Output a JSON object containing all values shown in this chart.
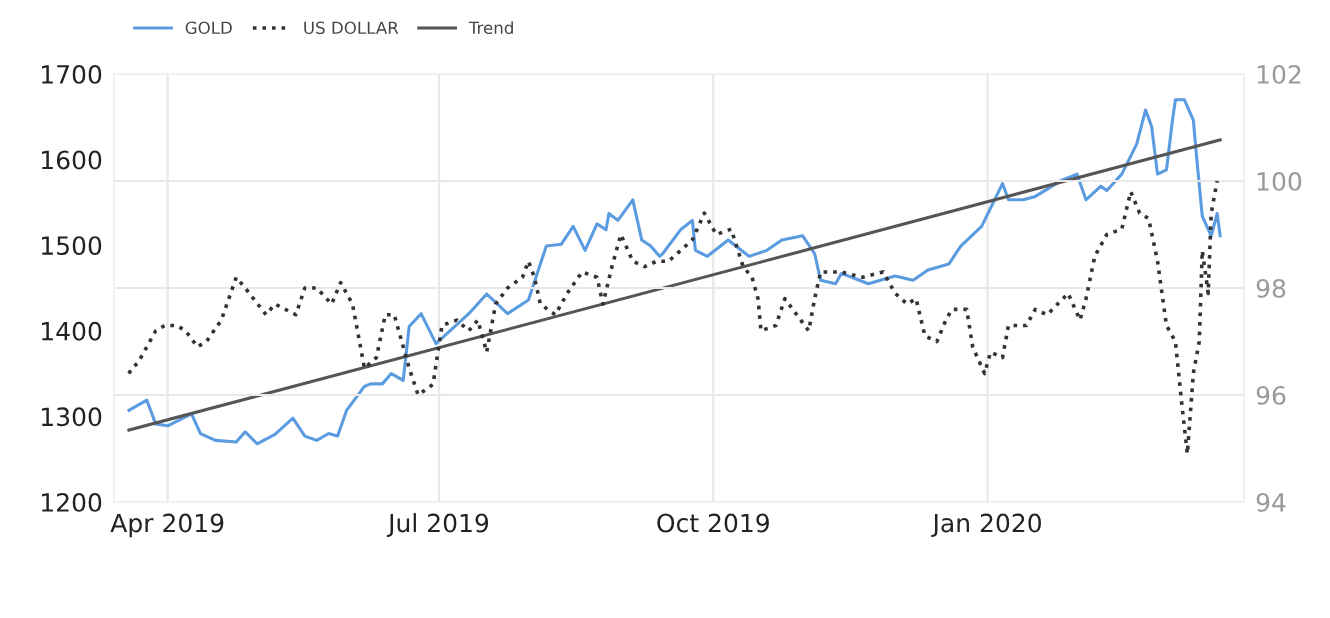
{
  "chart_data": {
    "type": "line",
    "xlim": [
      "2019-03-14",
      "2020-03-27"
    ],
    "xticks": [
      {
        "value": "2019-04-01",
        "label": "Apr 2019"
      },
      {
        "value": "2019-07-01",
        "label": "Jul 2019"
      },
      {
        "value": "2019-10-01",
        "label": "Oct 2019"
      },
      {
        "value": "2020-01-01",
        "label": "Jan 2020"
      }
    ],
    "ylim": [
      1200,
      1700
    ],
    "yticks": [
      1200,
      1300,
      1400,
      1500,
      1600,
      1700
    ],
    "y2lim": [
      94,
      102
    ],
    "y2ticks": [
      94,
      96,
      98,
      100,
      102
    ],
    "grid": true,
    "legend": "top left",
    "series": [
      {
        "name": "GOLD",
        "color": "#5b9be0",
        "line_style": "solid",
        "axis": "y",
        "x": [
          "2019-03-19",
          "2019-03-25",
          "2019-03-28",
          "2019-04-01",
          "2019-04-09",
          "2019-04-12",
          "2019-04-17",
          "2019-04-24",
          "2019-04-27",
          "2019-05-01",
          "2019-05-07",
          "2019-05-13",
          "2019-05-17",
          "2019-05-21",
          "2019-05-25",
          "2019-05-28",
          "2019-05-31",
          "2019-06-06",
          "2019-06-08",
          "2019-06-12",
          "2019-06-15",
          "2019-06-19",
          "2019-06-21",
          "2019-06-25",
          "2019-06-30",
          "2019-07-11",
          "2019-07-17",
          "2019-07-24",
          "2019-07-31",
          "2019-08-06",
          "2019-08-11",
          "2019-08-15",
          "2019-08-19",
          "2019-08-23",
          "2019-08-26",
          "2019-08-27",
          "2019-08-30",
          "2019-09-04",
          "2019-09-07",
          "2019-09-10",
          "2019-09-13",
          "2019-09-14",
          "2019-09-20",
          "2019-09-24",
          "2019-09-25",
          "2019-09-29",
          "2019-10-06",
          "2019-10-13",
          "2019-10-19",
          "2019-10-24",
          "2019-10-31",
          "2019-11-04",
          "2019-11-06",
          "2019-11-11",
          "2019-11-13",
          "2019-11-22",
          "2019-12-01",
          "2019-12-07",
          "2019-12-12",
          "2019-12-19",
          "2019-12-23",
          "2019-12-30",
          "2020-01-06",
          "2020-01-08",
          "2020-01-13",
          "2020-01-17",
          "2020-01-26",
          "2020-01-31",
          "2020-02-03",
          "2020-02-08",
          "2020-02-10",
          "2020-02-15",
          "2020-02-20",
          "2020-02-23",
          "2020-02-25",
          "2020-02-27",
          "2020-03-01",
          "2020-03-03",
          "2020-03-04",
          "2020-03-07",
          "2020-03-10",
          "2020-03-11",
          "2020-03-13",
          "2020-03-16",
          "2020-03-18",
          "2020-03-19"
        ],
        "values": [
          1307,
          1319,
          1291,
          1289,
          1303,
          1280,
          1272,
          1270,
          1282,
          1268,
          1279,
          1298,
          1277,
          1272,
          1280,
          1277,
          1307,
          1335,
          1338,
          1338,
          1350,
          1342,
          1405,
          1420,
          1385,
          1420,
          1443,
          1420,
          1436,
          1499,
          1501,
          1522,
          1494,
          1525,
          1518,
          1537,
          1529,
          1553,
          1506,
          1499,
          1487,
          1490,
          1518,
          1529,
          1494,
          1487,
          1506,
          1487,
          1494,
          1506,
          1511,
          1490,
          1459,
          1455,
          1467,
          1455,
          1464,
          1459,
          1471,
          1478,
          1499,
          1522,
          1572,
          1553,
          1553,
          1557,
          1576,
          1583,
          1553,
          1569,
          1564,
          1583,
          1618,
          1658,
          1639,
          1583,
          1588,
          1646,
          1670,
          1670,
          1646,
          1607,
          1534,
          1511,
          1537,
          1511
        ]
      },
      {
        "name": "US DOLLAR",
        "color": "#333333",
        "line_style": "dotted",
        "axis": "y2",
        "x": [
          "2019-03-19",
          "2019-03-20",
          "2019-03-22",
          "2019-03-28",
          "2019-03-31",
          "2019-04-04",
          "2019-04-07",
          "2019-04-11",
          "2019-04-14",
          "2019-04-19",
          "2019-04-24",
          "2019-04-27",
          "2019-05-04",
          "2019-05-07",
          "2019-05-14",
          "2019-05-17",
          "2019-05-21",
          "2019-05-26",
          "2019-05-29",
          "2019-06-02",
          "2019-06-04",
          "2019-06-06",
          "2019-06-10",
          "2019-06-13",
          "2019-06-16",
          "2019-06-19",
          "2019-06-21",
          "2019-06-24",
          "2019-06-29",
          "2019-07-02",
          "2019-07-07",
          "2019-07-11",
          "2019-07-14",
          "2019-07-17",
          "2019-07-20",
          "2019-07-24",
          "2019-07-29",
          "2019-07-31",
          "2019-08-02",
          "2019-08-04",
          "2019-08-09",
          "2019-08-13",
          "2019-08-18",
          "2019-08-23",
          "2019-08-25",
          "2019-08-28",
          "2019-08-31",
          "2019-09-04",
          "2019-09-08",
          "2019-09-12",
          "2019-09-16",
          "2019-09-18",
          "2019-09-24",
          "2019-09-28",
          "2019-10-02",
          "2019-10-07",
          "2019-10-11",
          "2019-10-14",
          "2019-10-16",
          "2019-10-17",
          "2019-10-22",
          "2019-10-25",
          "2019-10-29",
          "2019-11-02",
          "2019-11-04",
          "2019-11-06",
          "2019-11-13",
          "2019-11-20",
          "2019-11-27",
          "2019-12-01",
          "2019-12-05",
          "2019-12-08",
          "2019-12-11",
          "2019-12-15",
          "2019-12-18",
          "2019-12-20",
          "2019-12-25",
          "2019-12-27",
          "2019-12-31",
          "2020-01-02",
          "2020-01-06",
          "2020-01-08",
          "2020-01-14",
          "2020-01-17",
          "2020-01-21",
          "2020-01-28",
          "2020-02-01",
          "2020-02-03",
          "2020-02-06",
          "2020-02-10",
          "2020-02-15",
          "2020-02-18",
          "2020-02-21",
          "2020-02-24",
          "2020-02-27",
          "2020-03-01",
          "2020-03-04",
          "2020-03-06",
          "2020-03-08",
          "2020-03-10",
          "2020-03-12",
          "2020-03-13",
          "2020-03-15",
          "2020-03-16",
          "2020-03-18"
        ],
        "values": [
          96.4,
          96.5,
          96.6,
          97.2,
          97.3,
          97.3,
          97.2,
          96.9,
          97.0,
          97.4,
          98.2,
          98.0,
          97.5,
          97.7,
          97.5,
          98.0,
          98.0,
          97.7,
          98.1,
          97.7,
          97.1,
          96.5,
          96.7,
          97.5,
          97.5,
          96.9,
          96.5,
          96.0,
          96.2,
          97.3,
          97.4,
          97.2,
          97.4,
          96.8,
          97.7,
          98.0,
          98.2,
          98.5,
          98.2,
          97.7,
          97.5,
          97.9,
          98.3,
          98.2,
          97.7,
          98.4,
          99.0,
          98.5,
          98.4,
          98.5,
          98.5,
          98.6,
          98.9,
          99.4,
          99.0,
          99.1,
          98.4,
          98.2,
          97.8,
          97.2,
          97.3,
          97.8,
          97.5,
          97.2,
          97.8,
          98.3,
          98.3,
          98.2,
          98.3,
          97.9,
          97.7,
          97.8,
          97.1,
          97.0,
          97.4,
          97.6,
          97.6,
          96.9,
          96.4,
          96.8,
          96.7,
          97.3,
          97.3,
          97.6,
          97.5,
          97.9,
          97.4,
          97.8,
          98.6,
          99.0,
          99.1,
          99.8,
          99.4,
          99.3,
          98.5,
          97.3,
          97.0,
          95.9,
          94.9,
          96.4,
          97.0,
          98.7,
          97.9,
          99.4,
          100.0
        ]
      },
      {
        "name": "Trend",
        "color": "#555555",
        "line_style": "solid",
        "axis": "y",
        "x": [
          "2019-03-19",
          "2020-03-19"
        ],
        "values": [
          1284,
          1623
        ]
      }
    ]
  }
}
